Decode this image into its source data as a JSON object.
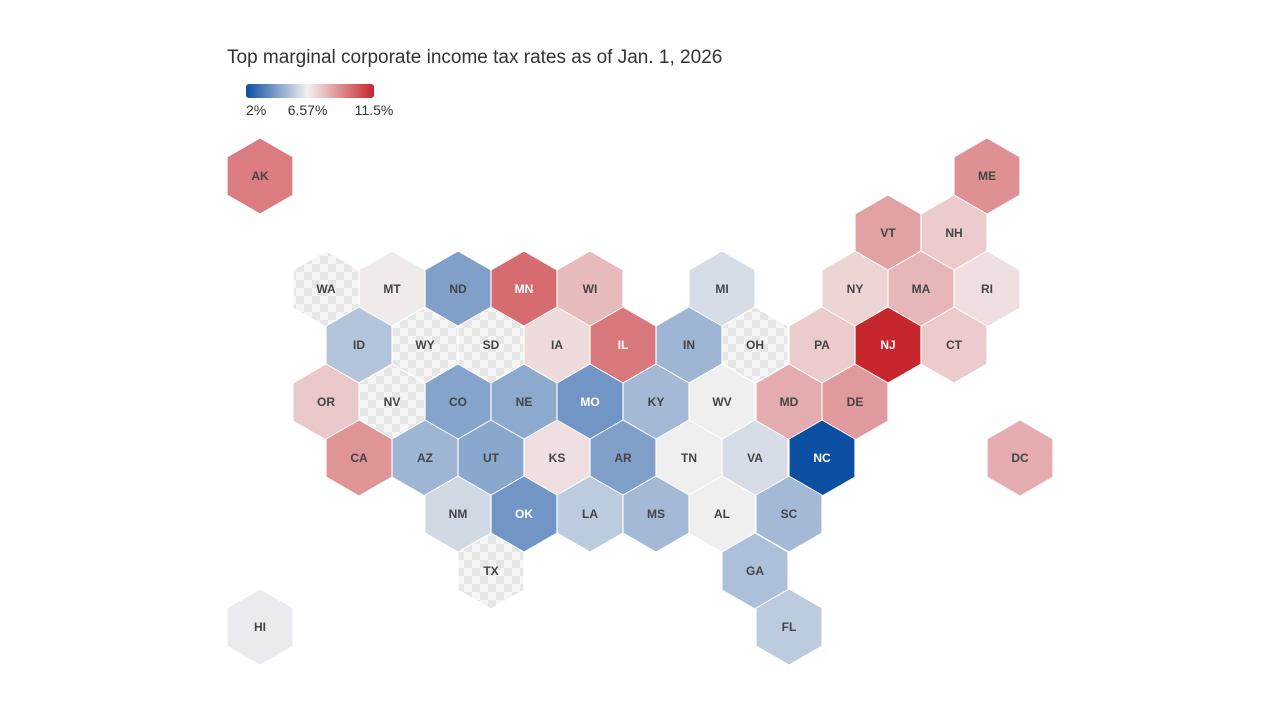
{
  "chart_data": {
    "type": "hexmap",
    "title": "Top marginal corporate income tax rates as of Jan. 1, 2026",
    "categories": [
      "AK",
      "ME",
      "VT",
      "NH",
      "WA",
      "MT",
      "ND",
      "MN",
      "WI",
      "MI",
      "NY",
      "MA",
      "RI",
      "ID",
      "WY",
      "SD",
      "IA",
      "IL",
      "IN",
      "OH",
      "PA",
      "NJ",
      "CT",
      "OR",
      "NV",
      "CO",
      "NE",
      "MO",
      "KY",
      "WV",
      "MD",
      "DE",
      "CA",
      "AZ",
      "UT",
      "KS",
      "AR",
      "TN",
      "VA",
      "NC",
      "DC",
      "NM",
      "OK",
      "LA",
      "MS",
      "AL",
      "SC",
      "TX",
      "GA",
      "HI",
      "FL"
    ],
    "values": [
      9.4,
      8.93,
      8.5,
      7.5,
      null,
      6.75,
      4.31,
      9.8,
      7.9,
      6,
      7.25,
      8,
      7,
      5.3,
      null,
      null,
      7.1,
      9.5,
      4.9,
      null,
      7.49,
      11.5,
      7.5,
      7.6,
      null,
      4.4,
      4.55,
      4,
      5,
      6.5,
      8.25,
      8.7,
      8.84,
      4.9,
      4.5,
      7,
      4.3,
      6.5,
      6,
      2,
      8.25,
      5.9,
      4,
      5.5,
      5,
      6.5,
      5,
      null,
      5.19,
      6.4,
      5.5
    ],
    "colorbar": {
      "lim": [
        2,
        11.5
      ],
      "ticks": [
        {
          "value": 2,
          "label": "2%"
        },
        {
          "value": 6.57,
          "label": "6.57%"
        },
        {
          "value": 11.5,
          "label": "11.5%"
        }
      ],
      "colors": [
        "#0b4ea2",
        "#f3f1f1",
        "#c7262c"
      ]
    }
  }
}
